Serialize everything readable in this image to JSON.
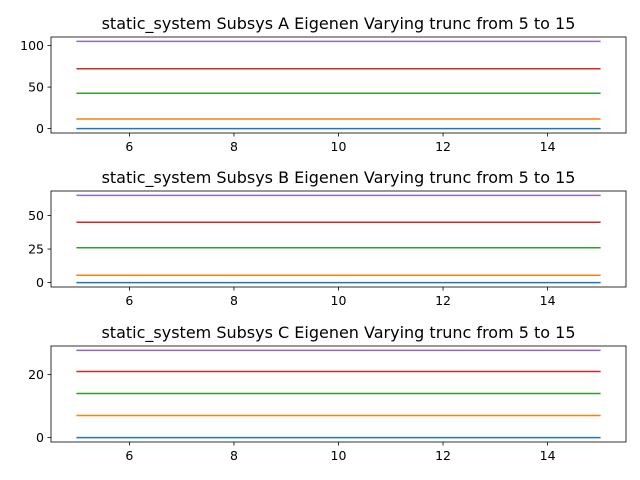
{
  "figure": {
    "background": "#ffffff"
  },
  "chart_data": [
    {
      "type": "line",
      "title": "static_system Subsys A Eigenen Varying trunc from 5 to 15",
      "xlabel": "",
      "ylabel": "",
      "xlim": [
        4.5,
        15.5
      ],
      "ylim": [
        -5.3,
        110.3
      ],
      "xticks": [
        6,
        8,
        10,
        12,
        14
      ],
      "yticks": [
        0,
        50,
        100
      ],
      "grid": false,
      "legend": "none",
      "series": [
        {
          "color": "#1f77b4",
          "x": [
            5,
            15
          ],
          "y": [
            0,
            0
          ]
        },
        {
          "color": "#ff7f0e",
          "x": [
            5,
            15
          ],
          "y": [
            11.5,
            11.5
          ]
        },
        {
          "color": "#2ca02c",
          "x": [
            5,
            15
          ],
          "y": [
            42.5,
            42.5
          ]
        },
        {
          "color": "#d62728",
          "x": [
            5,
            15
          ],
          "y": [
            72,
            72
          ]
        },
        {
          "color": "#9467bd",
          "x": [
            5,
            15
          ],
          "y": [
            105,
            105
          ]
        }
      ]
    },
    {
      "type": "line",
      "title": "static_system Subsys B Eigenen Varying trunc from 5 to 15",
      "xlabel": "",
      "ylabel": "",
      "xlim": [
        4.5,
        15.5
      ],
      "ylim": [
        -3.3,
        68.3
      ],
      "xticks": [
        6,
        8,
        10,
        12,
        14
      ],
      "yticks": [
        0,
        25,
        50
      ],
      "grid": false,
      "legend": "none",
      "series": [
        {
          "color": "#1f77b4",
          "x": [
            5,
            15
          ],
          "y": [
            0,
            0
          ]
        },
        {
          "color": "#ff7f0e",
          "x": [
            5,
            15
          ],
          "y": [
            5.5,
            5.5
          ]
        },
        {
          "color": "#2ca02c",
          "x": [
            5,
            15
          ],
          "y": [
            26,
            26
          ]
        },
        {
          "color": "#d62728",
          "x": [
            5,
            15
          ],
          "y": [
            45,
            45
          ]
        },
        {
          "color": "#9467bd",
          "x": [
            5,
            15
          ],
          "y": [
            65,
            65
          ]
        }
      ]
    },
    {
      "type": "line",
      "title": "static_system Subsys C Eigenen Varying trunc from 5 to 15",
      "xlabel": "",
      "ylabel": "",
      "xlim": [
        4.5,
        15.5
      ],
      "ylim": [
        -1.4,
        29.1
      ],
      "xticks": [
        6,
        8,
        10,
        12,
        14
      ],
      "yticks": [
        0,
        20
      ],
      "grid": false,
      "legend": "none",
      "series": [
        {
          "color": "#1f77b4",
          "x": [
            5,
            15
          ],
          "y": [
            0,
            0
          ]
        },
        {
          "color": "#ff7f0e",
          "x": [
            5,
            15
          ],
          "y": [
            7,
            7
          ]
        },
        {
          "color": "#2ca02c",
          "x": [
            5,
            15
          ],
          "y": [
            14,
            14
          ]
        },
        {
          "color": "#d62728",
          "x": [
            5,
            15
          ],
          "y": [
            21,
            21
          ]
        },
        {
          "color": "#9467bd",
          "x": [
            5,
            15
          ],
          "y": [
            27.7,
            27.7
          ]
        }
      ]
    }
  ]
}
